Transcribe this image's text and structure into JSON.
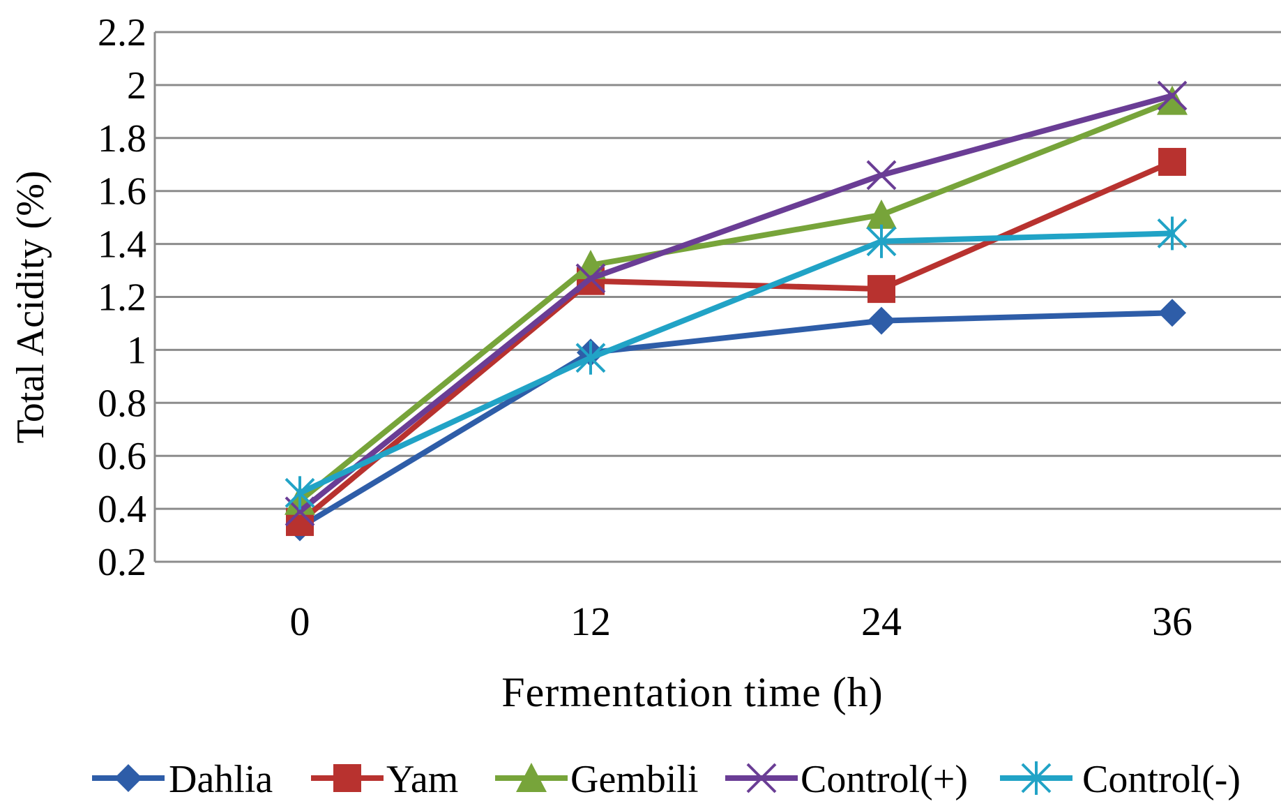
{
  "chart_data": {
    "type": "line",
    "title": "",
    "xlabel": "Fermentation time (h)",
    "ylabel": "Total Acidity (%)",
    "categories": [
      "0",
      "12",
      "24",
      "36"
    ],
    "ylim": [
      0.2,
      2.2
    ],
    "yticks": [
      "0.2",
      "0.4",
      "0.6",
      "0.8",
      "1",
      "1.2",
      "1.4",
      "1.6",
      "1.8",
      "2",
      "2.2"
    ],
    "grid": true,
    "legend_position": "bottom",
    "series": [
      {
        "name": "Dahlia",
        "values": [
          0.33,
          0.99,
          1.11,
          1.14
        ],
        "color": "#2E5DA8",
        "marker": "diamond"
      },
      {
        "name": "Yam",
        "values": [
          0.35,
          1.26,
          1.23,
          1.71
        ],
        "color": "#B8322F",
        "marker": "square"
      },
      {
        "name": "Gembili",
        "values": [
          0.43,
          1.32,
          1.51,
          1.94
        ],
        "color": "#77A43A",
        "marker": "triangle"
      },
      {
        "name": "Control(+)",
        "values": [
          0.39,
          1.27,
          1.66,
          1.96
        ],
        "color": "#6A3D95",
        "marker": "x"
      },
      {
        "name": "Control(-)",
        "values": [
          0.46,
          0.97,
          1.41,
          1.44
        ],
        "color": "#21A3C6",
        "marker": "asterisk"
      }
    ]
  }
}
